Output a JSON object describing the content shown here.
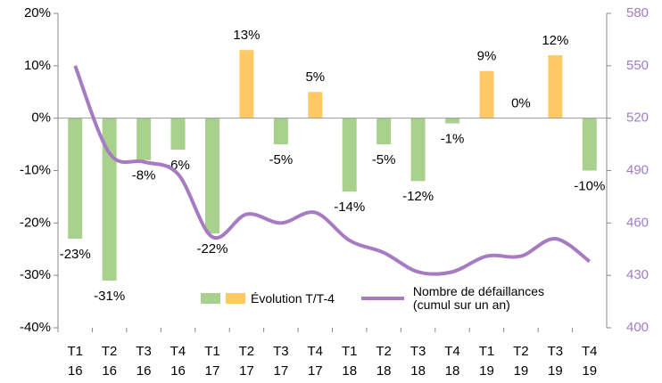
{
  "chart_data": {
    "type": "bar",
    "categories": [
      "T1 16",
      "T2 16",
      "T3 16",
      "T4 16",
      "T1 17",
      "T2 17",
      "T3 17",
      "T4 17",
      "T1 18",
      "T2 18",
      "T3 18",
      "T4 18",
      "T1 19",
      "T2 19",
      "T3 19",
      "T4 19"
    ],
    "ylim": [
      -40,
      20
    ],
    "yticks": [
      {
        "value": -40,
        "label": "-40%"
      },
      {
        "value": -30,
        "label": "-30%"
      },
      {
        "value": -20,
        "label": "-20%"
      },
      {
        "value": -10,
        "label": "-10%"
      },
      {
        "value": 0,
        "label": "0%"
      },
      {
        "value": 10,
        "label": "10%"
      },
      {
        "value": 20,
        "label": "20%"
      }
    ],
    "y2lim": [
      400,
      580
    ],
    "y2ticks": [
      400,
      430,
      460,
      490,
      520,
      550,
      580
    ],
    "y2_color": "#a07cc5",
    "series": [
      {
        "name": "Évolution T/T-4",
        "type": "bar",
        "color": "#a9d18e",
        "positive_color": "#ffc966",
        "values": [
          -23,
          -31,
          -8,
          -6,
          -22,
          13,
          -5,
          5,
          -14,
          -5,
          -12,
          -1,
          9,
          0,
          12,
          -10
        ],
        "value_labels": [
          "-23%",
          "-31%",
          "-8%",
          "-6%",
          "-22%",
          "13%",
          "-5%",
          "5%",
          "-14%",
          "-5%",
          "-12%",
          "-1%",
          "9%",
          "0%",
          "12%",
          "-10%"
        ]
      },
      {
        "name": "Nombre de défaillances (cumul sur un an)",
        "type": "line",
        "axis": "y2",
        "color": "#a77bc2",
        "values": [
          550,
          500,
          495,
          488,
          452,
          465,
          460,
          466,
          450,
          443,
          432,
          432,
          441,
          441,
          451,
          438
        ]
      }
    ]
  }
}
